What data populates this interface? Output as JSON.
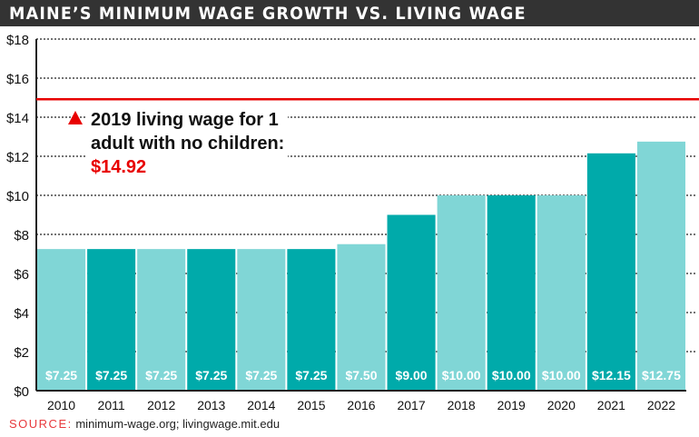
{
  "title": "MAINE’S MINIMUM WAGE GROWTH VS. LIVING WAGE",
  "chart_data": {
    "type": "bar",
    "title": "MAINE’S MINIMUM WAGE GROWTH VS. LIVING WAGE",
    "xlabel": "",
    "ylabel": "",
    "ylim": [
      0,
      18
    ],
    "yticks": [
      0,
      2,
      4,
      6,
      8,
      10,
      12,
      14,
      16,
      18
    ],
    "ytick_labels": [
      "$0",
      "$2",
      "$4",
      "$6",
      "$8",
      "$10",
      "$12",
      "$14",
      "$16",
      "$18"
    ],
    "categories": [
      "2010",
      "2011",
      "2012",
      "2013",
      "2014",
      "2015",
      "2016",
      "2017",
      "2018",
      "2019",
      "2020",
      "2021",
      "2022"
    ],
    "values": [
      7.25,
      7.25,
      7.25,
      7.25,
      7.25,
      7.25,
      7.5,
      9.0,
      10.0,
      10.0,
      10.0,
      12.15,
      12.75
    ],
    "value_labels": [
      "$7.25",
      "$7.25",
      "$7.25",
      "$7.25",
      "$7.25",
      "$7.25",
      "$7.50",
      "$9.00",
      "$10.00",
      "$10.00",
      "$10.00",
      "$12.15",
      "$12.75"
    ],
    "grid": true,
    "reference_line": {
      "value": 14.92,
      "color": "#e80000"
    },
    "colors": {
      "light": "#80d6d6",
      "dark": "#00aaaa"
    }
  },
  "annotation": {
    "text_line1": "2019 living wage for 1",
    "text_line2": "adult with no children:",
    "value": "$14.92"
  },
  "source": {
    "label": "SOURCE:",
    "text": " minimum-wage.org; livingwage.mit.edu"
  }
}
